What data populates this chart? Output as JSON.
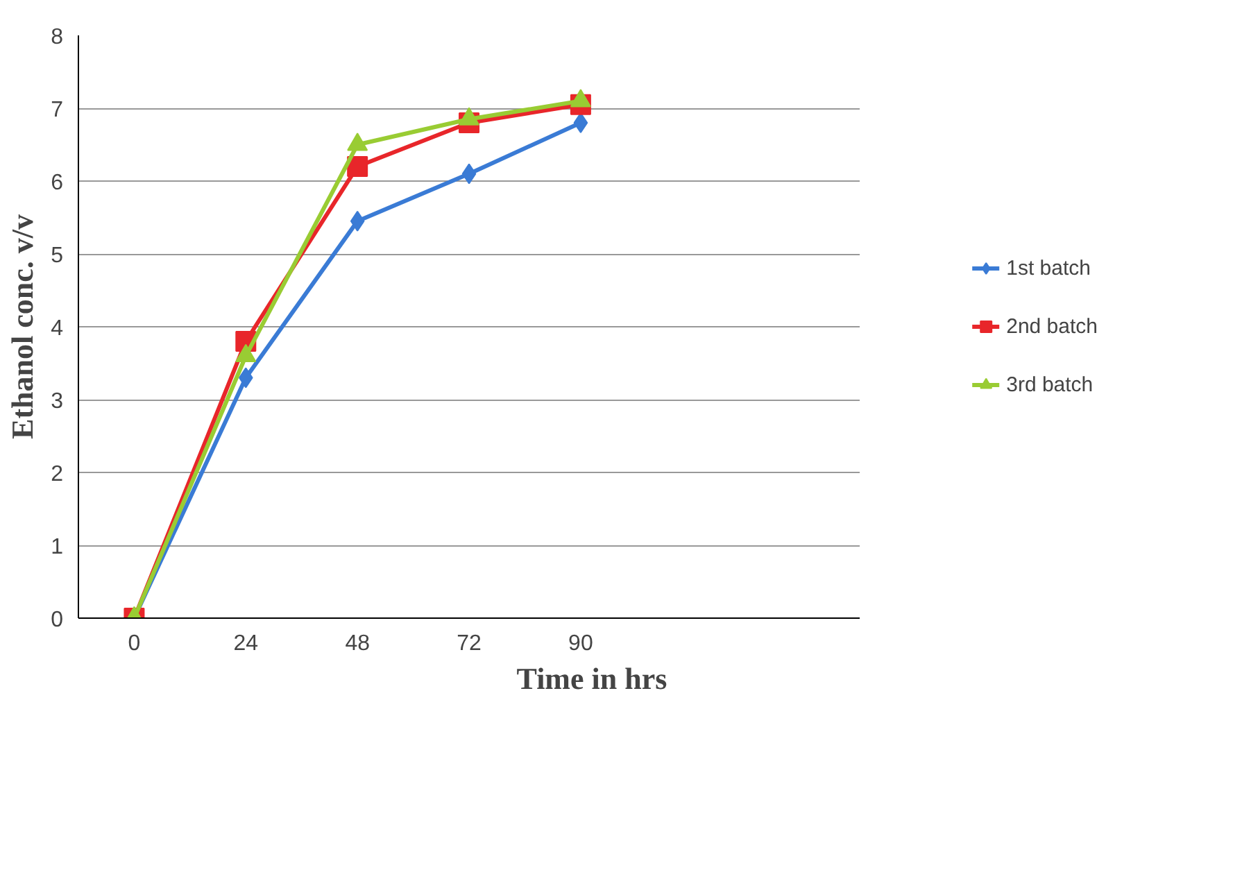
{
  "chart_data": {
    "type": "line",
    "xlabel": "Time in hrs",
    "ylabel": "Ethanol conc. v/v",
    "categories": [
      "0",
      "24",
      "48",
      "72",
      "90",
      null,
      null
    ],
    "ylim": [
      0,
      8
    ],
    "yticks": [
      0,
      1,
      2,
      3,
      4,
      5,
      6,
      7,
      8
    ],
    "grid": "y",
    "legend": "right",
    "line_style": "solid",
    "series": [
      {
        "name": "1st batch",
        "color": "#3a7bd5",
        "marker": "diamond",
        "values": [
          0,
          3.3,
          5.45,
          6.1,
          6.8,
          null,
          null
        ]
      },
      {
        "name": "2nd batch",
        "color": "#e8262a",
        "marker": "square",
        "values": [
          0,
          3.8,
          6.2,
          6.8,
          7.05,
          null,
          null
        ]
      },
      {
        "name": "3rd batch",
        "color": "#99cc33",
        "marker": "triangle",
        "values": [
          0,
          3.6,
          6.5,
          6.85,
          7.1,
          null,
          null
        ]
      }
    ]
  }
}
